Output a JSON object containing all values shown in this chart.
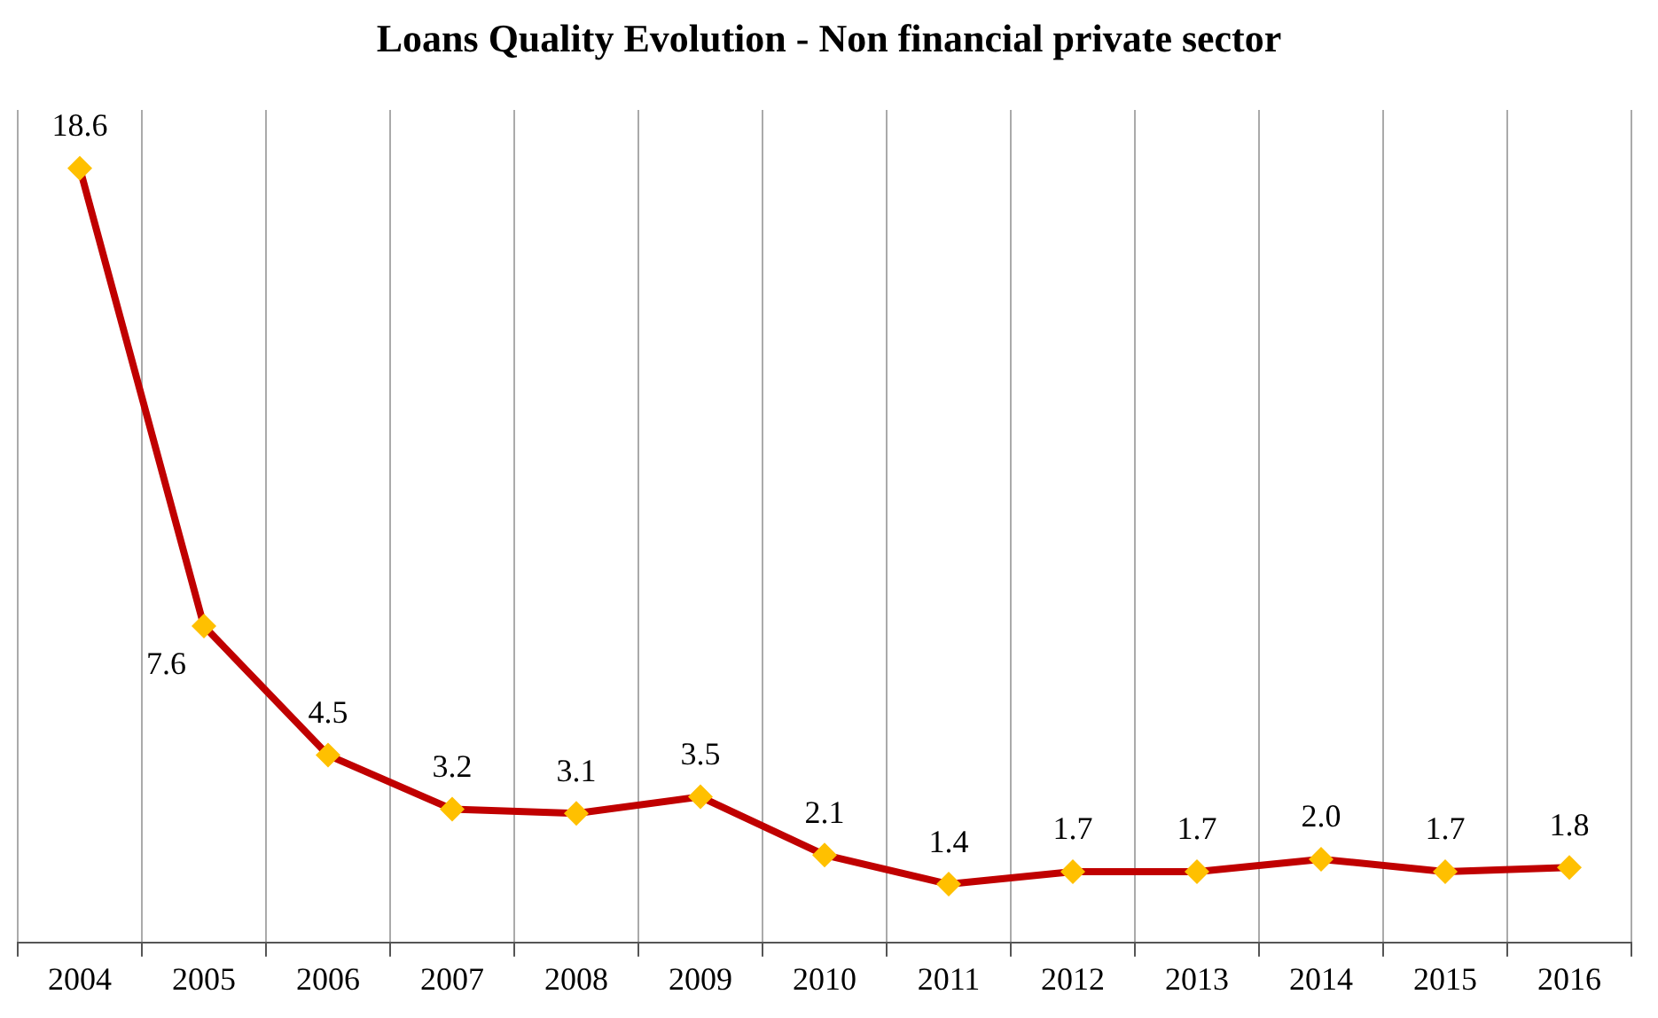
{
  "chart_data": {
    "type": "line",
    "title": "Loans Quality Evolution - Non financial private sector",
    "categories": [
      "2004",
      "2005",
      "2006",
      "2007",
      "2008",
      "2009",
      "2010",
      "2011",
      "2012",
      "2013",
      "2014",
      "2015",
      "2016"
    ],
    "series": [
      {
        "color": "#c00000",
        "colors": [
          "#ffc000",
          "#ffc000",
          "#ffc000",
          "#ffc000",
          "#ffc000",
          "#ffc000",
          "#ffc000",
          "#ffc000",
          "#ffc000",
          "#ffc000",
          "#ffc000",
          "#ffc000",
          "#ffc000"
        ],
        "values": [
          18.6,
          7.6,
          4.5,
          3.2,
          3.1,
          3.5,
          2.1,
          1.4,
          1.7,
          1.7,
          2.0,
          1.7,
          1.8
        ],
        "value_labels": [
          "18.6",
          "7.6",
          "4.5",
          "3.2",
          "3.1",
          "3.5",
          "2.1",
          "1.4",
          "1.7",
          "1.7",
          "2.0",
          "1.7",
          "1.8"
        ]
      }
    ],
    "marker": "diamond",
    "grid": "x",
    "legend": false,
    "tick_labels": "x"
  }
}
